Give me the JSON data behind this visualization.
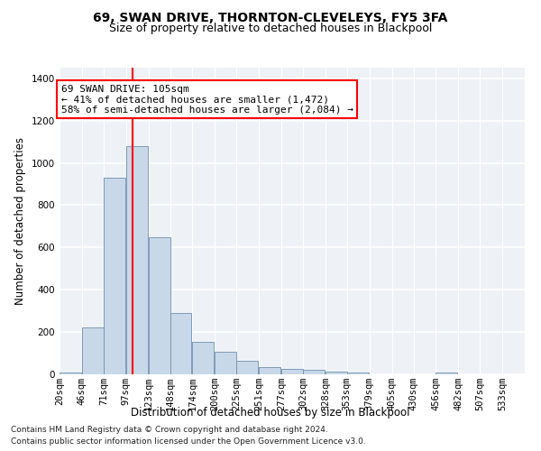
{
  "title1": "69, SWAN DRIVE, THORNTON-CLEVELEYS, FY5 3FA",
  "title2": "Size of property relative to detached houses in Blackpool",
  "xlabel": "Distribution of detached houses by size in Blackpool",
  "ylabel": "Number of detached properties",
  "footnote1": "Contains HM Land Registry data © Crown copyright and database right 2024.",
  "footnote2": "Contains public sector information licensed under the Open Government Licence v3.0.",
  "annotation_line1": "69 SWAN DRIVE: 105sqm",
  "annotation_line2": "← 41% of detached houses are smaller (1,472)",
  "annotation_line3": "58% of semi-detached houses are larger (2,084) →",
  "bar_color": "#c8d8e8",
  "bar_edge_color": "#7090b0",
  "red_line_x": 105,
  "categories": [
    "20sqm",
    "46sqm",
    "71sqm",
    "97sqm",
    "123sqm",
    "148sqm",
    "174sqm",
    "200sqm",
    "225sqm",
    "251sqm",
    "277sqm",
    "302sqm",
    "328sqm",
    "353sqm",
    "379sqm",
    "405sqm",
    "430sqm",
    "456sqm",
    "482sqm",
    "507sqm",
    "533sqm"
  ],
  "bin_starts": [
    20,
    46,
    71,
    97,
    123,
    148,
    174,
    200,
    225,
    251,
    277,
    302,
    328,
    353,
    379,
    405,
    430,
    456,
    482,
    507,
    533
  ],
  "bin_width": 25,
  "values": [
    10,
    220,
    930,
    1080,
    650,
    290,
    155,
    105,
    65,
    35,
    25,
    20,
    12,
    10,
    0,
    0,
    0,
    10,
    0,
    0,
    0
  ],
  "ylim": [
    0,
    1450
  ],
  "yticks": [
    0,
    200,
    400,
    600,
    800,
    1000,
    1200,
    1400
  ],
  "background_color": "#eef2f7",
  "grid_color": "#ffffff",
  "title_fontsize": 10,
  "subtitle_fontsize": 9,
  "axis_label_fontsize": 8.5,
  "tick_fontsize": 7.5,
  "annotation_fontsize": 8,
  "footnote_fontsize": 6.5
}
